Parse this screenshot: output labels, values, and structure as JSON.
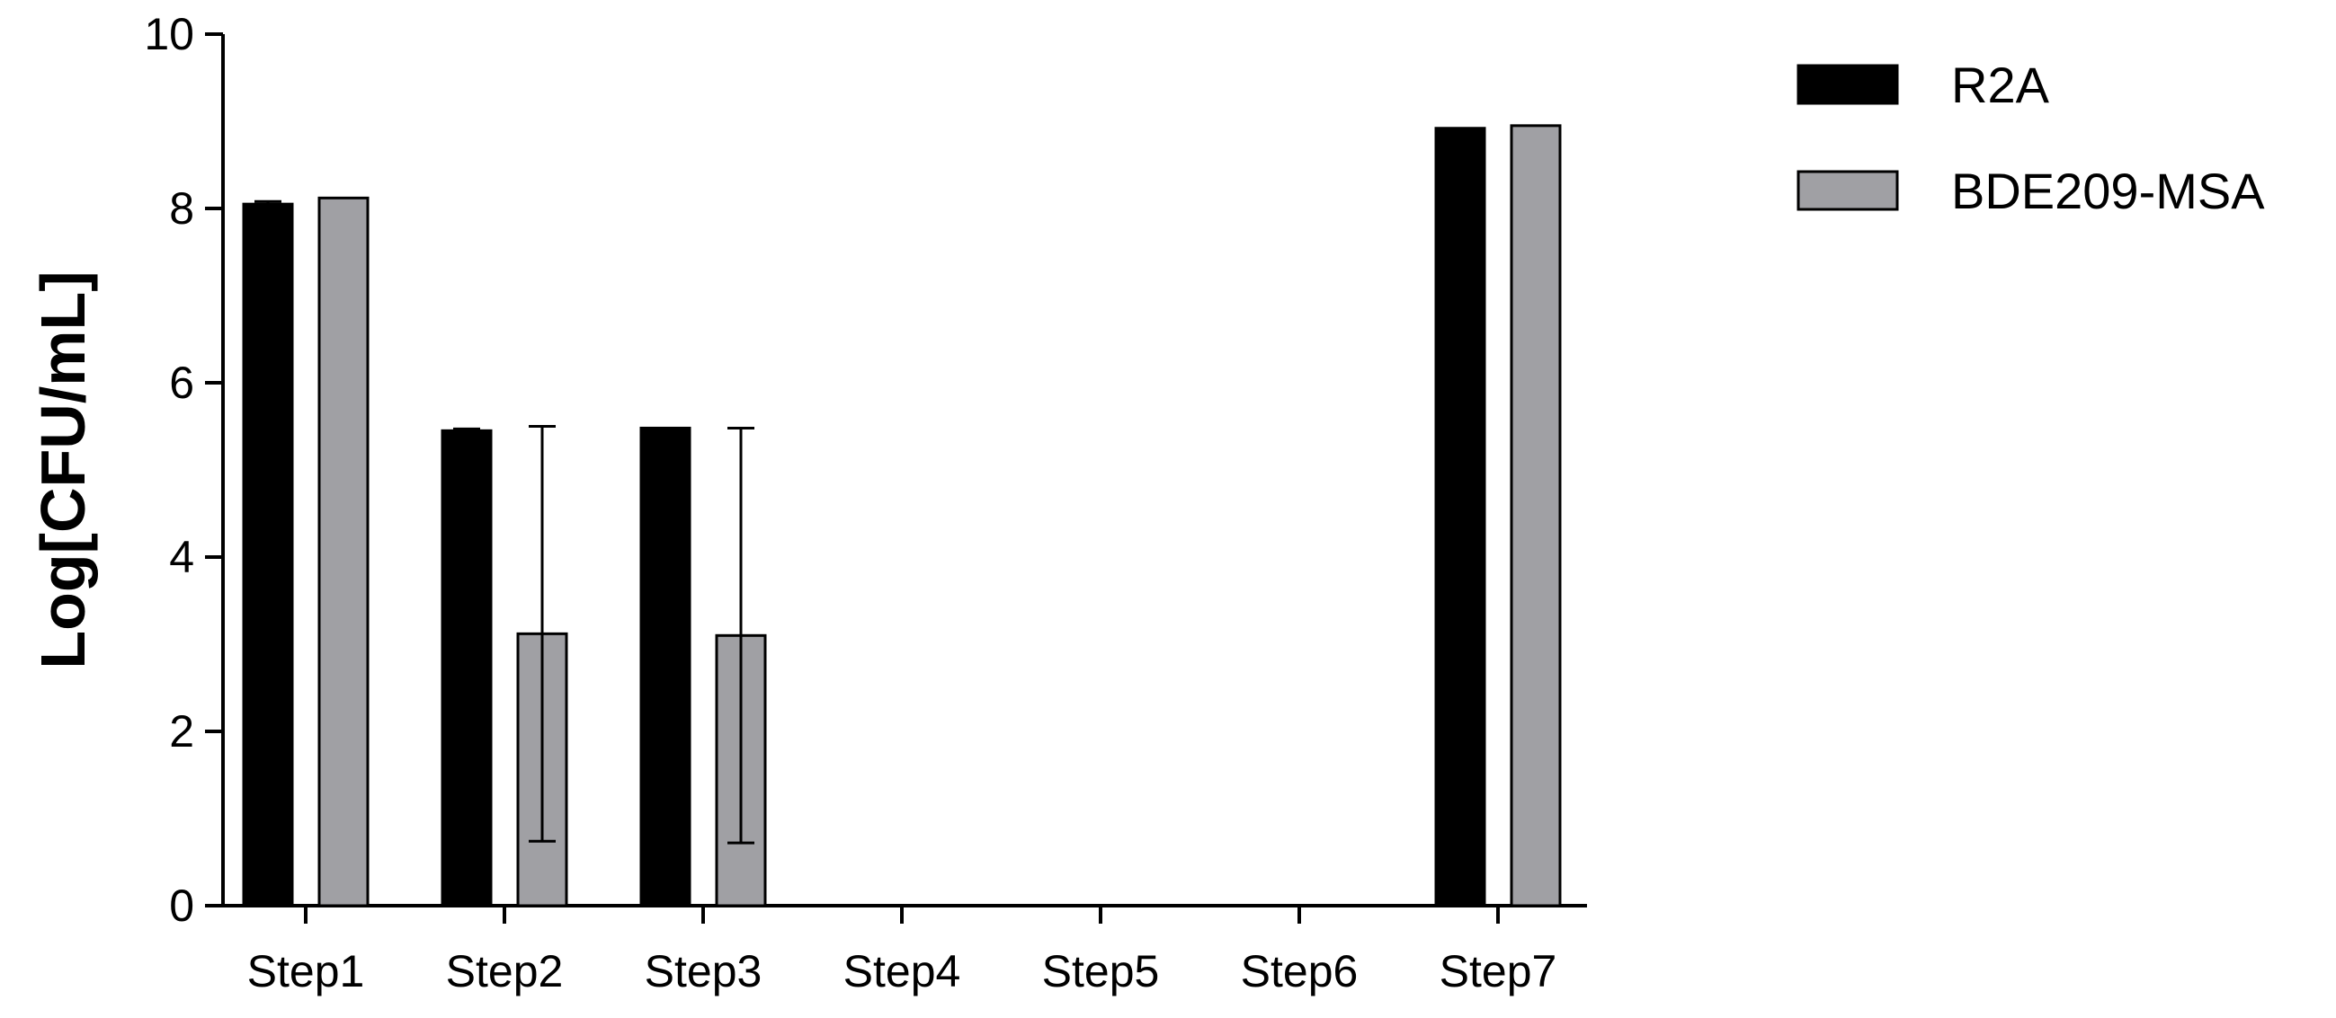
{
  "chart_data": {
    "type": "bar",
    "title": "",
    "xlabel": "",
    "ylabel": "Log[CFU/mL]",
    "ylim": [
      0,
      10
    ],
    "yticks": [
      0,
      2,
      4,
      6,
      8,
      10
    ],
    "grid": false,
    "legend_position": "top-right",
    "categories": [
      "Step1",
      "Step2",
      "Step3",
      "Step4",
      "Step5",
      "Step6",
      "Step7"
    ],
    "series": [
      {
        "name": "R2A",
        "color": "#000000",
        "values": [
          8.05,
          5.45,
          5.48,
          0,
          0,
          0,
          8.92
        ],
        "error_upper": [
          0.03,
          0.02,
          0,
          0,
          0,
          0,
          0
        ],
        "error_lower": [
          0,
          0,
          0,
          0,
          0,
          0,
          0
        ]
      },
      {
        "name": "BDE209-MSA",
        "color": "#a0a0a4",
        "values": [
          8.12,
          3.12,
          3.1,
          0,
          0,
          0,
          8.95
        ],
        "error_upper": [
          0,
          2.38,
          2.38,
          0,
          0,
          0,
          0
        ],
        "error_lower": [
          0,
          2.38,
          2.38,
          0,
          0,
          0,
          0
        ]
      }
    ]
  }
}
